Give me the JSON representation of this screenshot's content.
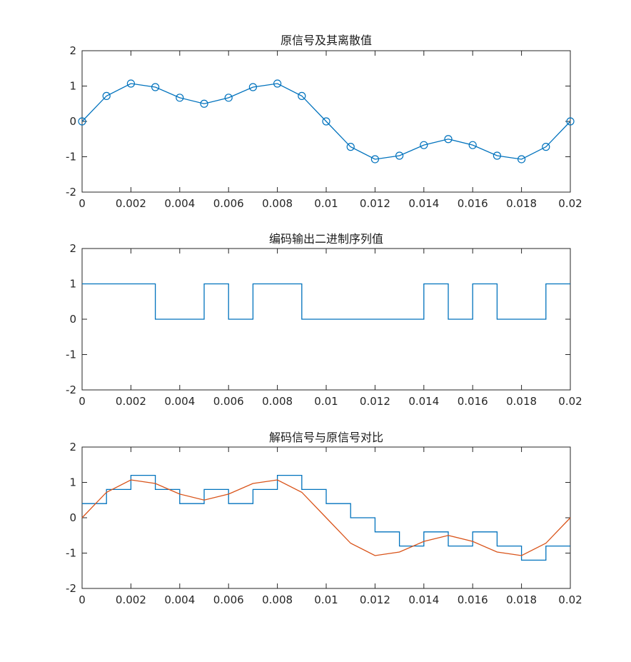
{
  "chart_data": [
    {
      "type": "line",
      "title": "原信号及其离散值",
      "xlabel": "",
      "ylabel": "",
      "xlim": [
        0,
        0.02
      ],
      "ylim": [
        -2,
        2
      ],
      "xticks": [
        0,
        0.002,
        0.004,
        0.006,
        0.008,
        0.01,
        0.012,
        0.014,
        0.016,
        0.018,
        0.02
      ],
      "xtick_labels": [
        "0",
        "0.002",
        "0.004",
        "0.006",
        "0.008",
        "0.01",
        "0.012",
        "0.014",
        "0.016",
        "0.018",
        "0.02"
      ],
      "yticks": [
        -2,
        -1,
        0,
        1,
        2
      ],
      "ytick_labels": [
        "-2",
        "-1",
        "0",
        "1",
        "2"
      ],
      "grid": false,
      "series": [
        {
          "style": "line-circle-markers",
          "color": "#0072BD",
          "x": [
            0,
            0.001,
            0.002,
            0.003,
            0.004,
            0.005,
            0.006,
            0.007,
            0.008,
            0.009,
            0.01,
            0.011,
            0.012,
            0.013,
            0.014,
            0.015,
            0.016,
            0.017,
            0.018,
            0.019,
            0.02
          ],
          "y": [
            0,
            0.72,
            1.07,
            0.97,
            0.67,
            0.5,
            0.67,
            0.97,
            1.07,
            0.72,
            0,
            -0.72,
            -1.07,
            -0.97,
            -0.67,
            -0.5,
            -0.67,
            -0.97,
            -1.07,
            -0.72,
            0
          ]
        }
      ]
    },
    {
      "type": "line",
      "title": "编码输出二进制序列值",
      "xlabel": "",
      "ylabel": "",
      "xlim": [
        0,
        0.02
      ],
      "ylim": [
        -2,
        2
      ],
      "xticks": [
        0,
        0.002,
        0.004,
        0.006,
        0.008,
        0.01,
        0.012,
        0.014,
        0.016,
        0.018,
        0.02
      ],
      "xtick_labels": [
        "0",
        "0.002",
        "0.004",
        "0.006",
        "0.008",
        "0.01",
        "0.012",
        "0.014",
        "0.016",
        "0.018",
        "0.02"
      ],
      "yticks": [
        -2,
        -1,
        0,
        1,
        2
      ],
      "ytick_labels": [
        "-2",
        "-1",
        "0",
        "1",
        "2"
      ],
      "grid": false,
      "series": [
        {
          "style": "stairs",
          "color": "#0072BD",
          "x": [
            0,
            0.001,
            0.002,
            0.003,
            0.004,
            0.005,
            0.006,
            0.007,
            0.008,
            0.009,
            0.01,
            0.011,
            0.012,
            0.013,
            0.014,
            0.015,
            0.016,
            0.017,
            0.018,
            0.019,
            0.02
          ],
          "y": [
            1,
            1,
            1,
            0,
            0,
            1,
            0,
            1,
            1,
            0,
            0,
            0,
            0,
            0,
            1,
            0,
            1,
            0,
            0,
            1,
            1
          ]
        }
      ]
    },
    {
      "type": "line",
      "title": "解码信号与原信号对比",
      "xlabel": "",
      "ylabel": "",
      "xlim": [
        0,
        0.02
      ],
      "ylim": [
        -2,
        2
      ],
      "xticks": [
        0,
        0.002,
        0.004,
        0.006,
        0.008,
        0.01,
        0.012,
        0.014,
        0.016,
        0.018,
        0.02
      ],
      "xtick_labels": [
        "0",
        "0.002",
        "0.004",
        "0.006",
        "0.008",
        "0.01",
        "0.012",
        "0.014",
        "0.016",
        "0.018",
        "0.02"
      ],
      "yticks": [
        -2,
        -1,
        0,
        1,
        2
      ],
      "ytick_labels": [
        "-2",
        "-1",
        "0",
        "1",
        "2"
      ],
      "grid": false,
      "series": [
        {
          "style": "stairs",
          "color": "#0072BD",
          "x": [
            0,
            0.001,
            0.002,
            0.003,
            0.004,
            0.005,
            0.006,
            0.007,
            0.008,
            0.009,
            0.01,
            0.011,
            0.012,
            0.013,
            0.014,
            0.015,
            0.016,
            0.017,
            0.018,
            0.019,
            0.02
          ],
          "y": [
            0.4,
            0.8,
            1.2,
            0.8,
            0.4,
            0.8,
            0.4,
            0.8,
            1.2,
            0.8,
            0.4,
            0,
            -0.4,
            -0.8,
            -0.4,
            -0.8,
            -0.4,
            -0.8,
            -1.2,
            -0.8,
            -0.8
          ]
        },
        {
          "style": "line",
          "color": "#D95319",
          "x": [
            0,
            0.001,
            0.002,
            0.003,
            0.004,
            0.005,
            0.006,
            0.007,
            0.008,
            0.009,
            0.01,
            0.011,
            0.012,
            0.013,
            0.014,
            0.015,
            0.016,
            0.017,
            0.018,
            0.019,
            0.02
          ],
          "y": [
            0,
            0.72,
            1.07,
            0.97,
            0.67,
            0.5,
            0.67,
            0.97,
            1.07,
            0.72,
            0,
            -0.72,
            -1.07,
            -0.97,
            -0.67,
            -0.5,
            -0.67,
            -0.97,
            -1.07,
            -0.72,
            0
          ]
        }
      ]
    }
  ]
}
